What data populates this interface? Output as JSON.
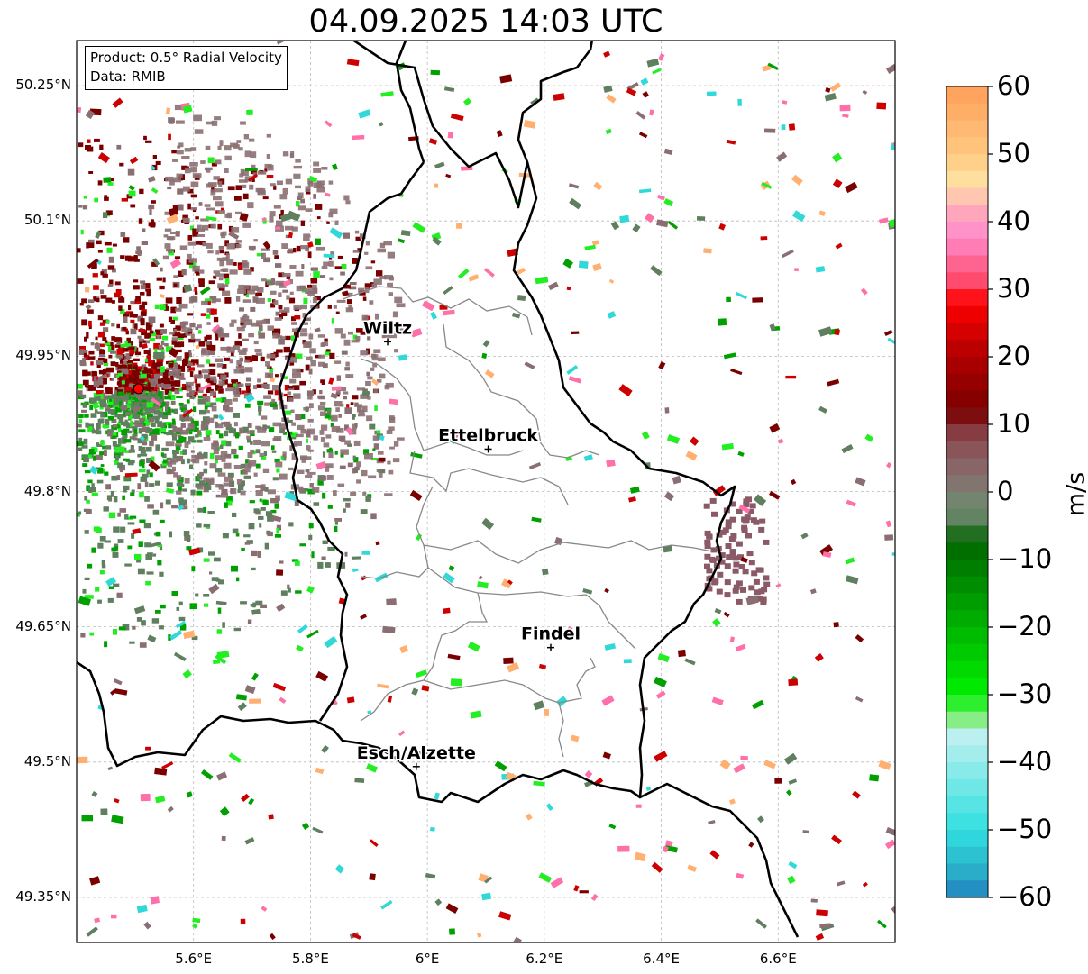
{
  "title": "04.09.2025 14:03 UTC",
  "info": {
    "product": "Product: 0.5° Radial Velocity",
    "source": "Data: RMIB"
  },
  "axes": {
    "lat_ticks": [
      "50.25°N",
      "50.1°N",
      "49.95°N",
      "49.8°N",
      "49.65°N",
      "49.5°N",
      "49.35°N"
    ],
    "lon_ticks": [
      "5.6°E",
      "5.8°E",
      "6°E",
      "6.2°E",
      "6.4°E",
      "6.6°E"
    ],
    "lat_range": [
      49.3,
      50.3
    ],
    "lon_range": [
      5.4,
      6.8
    ],
    "grid": true
  },
  "cities": [
    {
      "name": "Wiltz",
      "lon": 5.932,
      "lat": 49.966
    },
    {
      "name": "Ettelbruck",
      "lon": 6.104,
      "lat": 49.847
    },
    {
      "name": "Findel",
      "lon": 6.211,
      "lat": 49.627
    },
    {
      "name": "Esch/Alzette",
      "lon": 5.981,
      "lat": 49.495
    }
  ],
  "radar_site": {
    "lon": 5.506,
    "lat": 49.914,
    "color": "#ff0000"
  },
  "colorbar": {
    "label": "m/s",
    "min": -60,
    "max": 60,
    "ticks": [
      "60",
      "50",
      "40",
      "30",
      "20",
      "10",
      "0",
      "−10",
      "−20",
      "−30",
      "−40",
      "−50",
      "−60"
    ],
    "stops": [
      {
        "v": 60,
        "c": "#ff9f5a"
      },
      {
        "v": 50,
        "c": "#ffc880"
      },
      {
        "v": 45,
        "c": "#ffe6a8"
      },
      {
        "v": 43,
        "c": "#ffb4b4"
      },
      {
        "v": 38,
        "c": "#ff8ccc"
      },
      {
        "v": 31,
        "c": "#ff4a6a"
      },
      {
        "v": 28,
        "c": "#ff0000"
      },
      {
        "v": 20,
        "c": "#b00000"
      },
      {
        "v": 12,
        "c": "#7a0000"
      },
      {
        "v": 8,
        "c": "#8a4a50"
      },
      {
        "v": 2,
        "c": "#877070"
      },
      {
        "v": -2,
        "c": "#6e8a6e"
      },
      {
        "v": -5,
        "c": "#5a805a"
      },
      {
        "v": -7,
        "c": "#006400"
      },
      {
        "v": -20,
        "c": "#00b400"
      },
      {
        "v": -30,
        "c": "#00f000"
      },
      {
        "v": -34,
        "c": "#90ee90"
      },
      {
        "v": -36,
        "c": "#bff0f0"
      },
      {
        "v": -50,
        "c": "#30e0e0"
      },
      {
        "v": -56,
        "c": "#2ab0c8"
      },
      {
        "v": -60,
        "c": "#2080c0"
      }
    ]
  },
  "velocity_palette": {
    "inbound_strong": "#7a0000",
    "inbound_red": "#cc0000",
    "zero_mauve": "#8a6f72",
    "zero_green": "#5f7f5f",
    "outbound_green": "#00a000",
    "outbound_bright": "#22ee22",
    "outbound_cyan": "#30d8d8",
    "pink": "#ff6fa8",
    "orange": "#ffb070"
  }
}
